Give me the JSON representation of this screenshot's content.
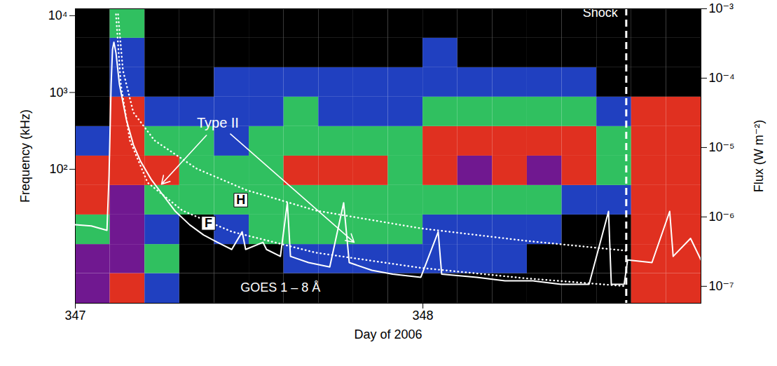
{
  "chart_data": {
    "type": "spectrogram",
    "xlabel": "Day of 2006",
    "ylabel": "Frequency (kHz)",
    "y2label": "Flux (W m⁻²)",
    "log": "y",
    "xlim": [
      347,
      348.8
    ],
    "xticks": [
      347,
      348
    ],
    "ylim": [
      1.8,
      12300
    ],
    "yticks": [
      {
        "value": 100,
        "label": "10²"
      },
      {
        "value": 1000,
        "label": "10³"
      },
      {
        "value": 10000,
        "label": "10⁴"
      }
    ],
    "y2lim": [
      5.7e-08,
      0.001
    ],
    "y2ticks": [
      {
        "value": 1e-07,
        "label": "10⁻⁷"
      },
      {
        "value": 1e-06,
        "label": "10⁻⁶"
      },
      {
        "value": 1e-05,
        "label": "10⁻⁵"
      },
      {
        "value": 0.0001,
        "label": "10⁻⁴"
      },
      {
        "value": 0.001,
        "label": "10⁻³"
      }
    ],
    "spectrogram": {
      "time_edges": [
        347,
        347.1,
        347.2,
        347.3,
        347.4,
        347.5,
        347.6,
        347.7,
        347.8,
        347.9,
        348,
        348.1,
        348.2,
        348.3,
        348.4,
        348.5,
        348.6,
        348.7,
        348.8
      ],
      "frequency_edges": [
        1.8,
        4.4,
        10.5,
        25.5,
        61.7,
        149,
        361,
        873,
        2110,
        5100,
        12300
      ],
      "intensity": [
        [
          4,
          4,
          2,
          3,
          3,
          1,
          0,
          0,
          0,
          0
        ],
        [
          3,
          4,
          4,
          4,
          3,
          3,
          3,
          1,
          1,
          2
        ],
        [
          1,
          2,
          1,
          2,
          3,
          2,
          1,
          0,
          0,
          0
        ],
        [
          0,
          0,
          0,
          2,
          2,
          2,
          1,
          0,
          0,
          0
        ],
        [
          0,
          0,
          1,
          2,
          2,
          1,
          1,
          1,
          0,
          0
        ],
        [
          0,
          0,
          2,
          2,
          2,
          2,
          1,
          1,
          0,
          0
        ],
        [
          0,
          1,
          2,
          2,
          3,
          2,
          2,
          1,
          0,
          0
        ],
        [
          0,
          1,
          2,
          2,
          3,
          2,
          1,
          1,
          0,
          0
        ],
        [
          0,
          1,
          2,
          2,
          3,
          2,
          1,
          1,
          0,
          0
        ],
        [
          0,
          1,
          2,
          2,
          2,
          2,
          1,
          1,
          0,
          0
        ],
        [
          0,
          1,
          1,
          2,
          3,
          3,
          2,
          1,
          1,
          0
        ],
        [
          0,
          1,
          1,
          2,
          4,
          3,
          2,
          1,
          0,
          0
        ],
        [
          0,
          1,
          1,
          2,
          3,
          3,
          2,
          1,
          0,
          0
        ],
        [
          0,
          0,
          1,
          2,
          4,
          3,
          2,
          1,
          0,
          0
        ],
        [
          0,
          0,
          0,
          1,
          3,
          3,
          2,
          1,
          0,
          0
        ],
        [
          0,
          0,
          0,
          1,
          2,
          2,
          1,
          0,
          0,
          0
        ],
        [
          3,
          3,
          3,
          3,
          3,
          3,
          3,
          0,
          0,
          0
        ],
        [
          3,
          3,
          3,
          3,
          3,
          3,
          3,
          0,
          0,
          0
        ]
      ],
      "colors": [
        "#000000",
        "#2040c0",
        "#30c060",
        "#e03020",
        "#701890"
      ]
    },
    "series": [
      {
        "name": "GOES 1 – 8 Å",
        "color": "#ffffff",
        "axis": "y2",
        "label_x": 347.59,
        "label_y": 9.5e-08,
        "x": [
          347,
          347.046,
          347.091,
          347.097,
          347.103,
          347.107,
          347.111,
          347.117,
          347.127,
          347.147,
          347.167,
          347.188,
          347.218,
          347.248,
          347.288,
          347.329,
          347.369,
          347.409,
          347.45,
          347.48,
          347.49,
          347.54,
          347.55,
          347.59,
          347.61,
          347.619,
          347.671,
          347.732,
          347.772,
          347.788,
          347.853,
          347.913,
          347.994,
          348.044,
          348.054,
          348.155,
          348.236,
          348.317,
          348.397,
          348.478,
          348.534,
          348.542,
          348.579,
          348.589,
          348.659,
          348.71,
          348.72,
          348.77,
          348.8
        ],
        "values": [
          7.7e-07,
          7.4e-07,
          6.4e-07,
          3.9e-06,
          8.1e-05,
          0.00026,
          0.00033,
          0.00023,
          8.1e-05,
          2.5e-05,
          1.1e-05,
          6.3e-06,
          3.5e-06,
          2.2e-06,
          1.2e-06,
          7.7e-07,
          5.5e-07,
          4.3e-07,
          3.4e-07,
          6.1e-07,
          3.4e-07,
          4.3e-07,
          3.4e-07,
          2.7e-07,
          1.6e-06,
          2.7e-07,
          2.2e-07,
          1.9e-07,
          1.6e-06,
          2.2e-07,
          1.7e-07,
          1.5e-07,
          1.35e-07,
          6.1e-07,
          1.5e-07,
          1.35e-07,
          1.2e-07,
          1.2e-07,
          1.07e-07,
          1.07e-07,
          1.2e-06,
          1.07e-07,
          1.07e-07,
          2.4e-07,
          2.2e-07,
          1.2e-06,
          2.7e-07,
          4.9e-07,
          2.4e-07
        ]
      },
      {
        "name": "H",
        "color": "#ffffff",
        "line_style": "dotted",
        "label_x": 347.476,
        "label_y": 39.6,
        "x": [
          347.123,
          347.137,
          347.167,
          347.228,
          347.349,
          347.49,
          347.692,
          347.994,
          348.296,
          348.585
        ],
        "values": [
          10400,
          1940,
          550,
          237,
          102,
          54,
          29,
          17,
          11.7,
          8.7
        ]
      },
      {
        "name": "F",
        "color": "#ffffff",
        "line_style": "dotted",
        "label_x": 347.383,
        "label_y": 19.8,
        "x": [
          347.117,
          347.131,
          347.157,
          347.208,
          347.308,
          347.45,
          347.692,
          347.994,
          348.296,
          348.585
        ],
        "values": [
          10400,
          1270,
          237,
          67,
          29,
          15.4,
          8.2,
          5.2,
          3.8,
          3.0
        ]
      }
    ],
    "annotations": [
      {
        "text": "Type II",
        "x": 347.41,
        "y": 401,
        "arrows_to": [
          [
            347.248,
            64
          ],
          [
            347.802,
            11.2
          ]
        ]
      }
    ],
    "vlines": [
      {
        "x": 348.585,
        "text": "Shock",
        "y": 10900
      }
    ]
  }
}
